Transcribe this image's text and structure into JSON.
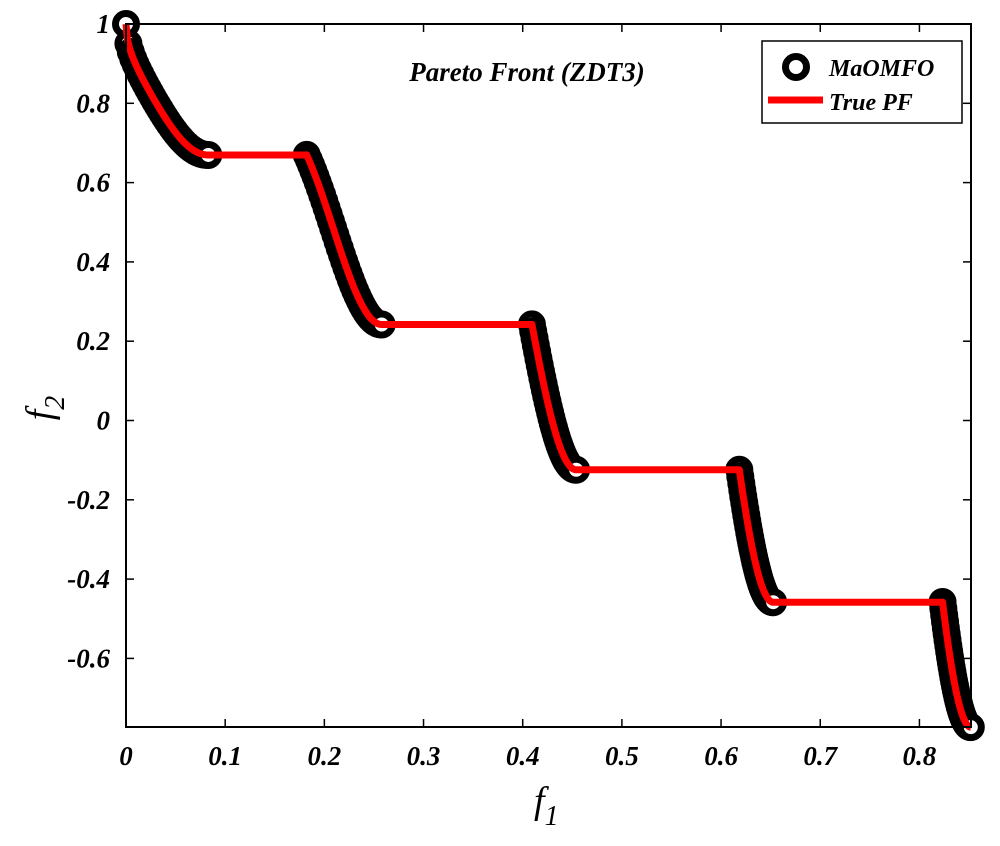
{
  "chart_data": {
    "type": "line",
    "title": "Pareto Front (ZDT3)",
    "xlabel": "f",
    "xlabel_sub": "1",
    "ylabel": "f",
    "ylabel_sub": "2",
    "xlim": [
      0,
      0.852
    ],
    "ylim": [
      -0.773,
      1.0
    ],
    "xticks": [
      0,
      0.1,
      0.2,
      0.3,
      0.4,
      0.5,
      0.6,
      0.7,
      0.8
    ],
    "xtick_labels": [
      "0",
      "0.1",
      "0.2",
      "0.3",
      "0.4",
      "0.5",
      "0.6",
      "0.7",
      "0.8"
    ],
    "yticks": [
      1.0,
      0.8,
      0.6,
      0.4,
      0.2,
      0,
      -0.2,
      -0.4,
      -0.6
    ],
    "ytick_labels": [
      "1",
      "0.8",
      "0.6",
      "0.4",
      "0.2",
      "0",
      "-0.2",
      "-0.4",
      "-0.6"
    ],
    "grid": false,
    "legend_position": "top-right",
    "series": [
      {
        "name": "MaOMFO",
        "marker": "circle",
        "color": "#000000",
        "segments": [
          [
            0.0,
            0.083
          ],
          [
            0.1822,
            0.2578
          ],
          [
            0.4093,
            0.4539
          ],
          [
            0.6184,
            0.6525
          ],
          [
            0.8233,
            0.8518
          ]
        ]
      },
      {
        "name": "True PF",
        "marker": "none",
        "color": "#ff0000",
        "segments": [
          [
            0.0,
            0.083
          ],
          [
            0.1822,
            0.2578
          ],
          [
            0.4093,
            0.4539
          ],
          [
            0.6184,
            0.6525
          ],
          [
            0.8233,
            0.8518
          ]
        ]
      }
    ]
  }
}
